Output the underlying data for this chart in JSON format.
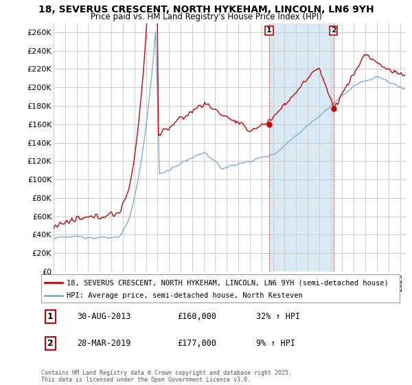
{
  "title": "18, SEVERUS CRESCENT, NORTH HYKEHAM, LINCOLN, LN6 9YH",
  "subtitle": "Price paid vs. HM Land Registry's House Price Index (HPI)",
  "ylabel_ticks": [
    "£0",
    "£20K",
    "£40K",
    "£60K",
    "£80K",
    "£100K",
    "£120K",
    "£140K",
    "£160K",
    "£180K",
    "£200K",
    "£220K",
    "£240K",
    "£260K"
  ],
  "ytick_values": [
    0,
    20000,
    40000,
    60000,
    80000,
    100000,
    120000,
    140000,
    160000,
    180000,
    200000,
    220000,
    240000,
    260000
  ],
  "legend_line1": "18, SEVERUS CRESCENT, NORTH HYKEHAM, LINCOLN, LN6 9YH (semi-detached house)",
  "legend_line2": "HPI: Average price, semi-detached house, North Kesteven",
  "annotation1_date": "30-AUG-2013",
  "annotation1_price": "£160,000",
  "annotation1_hpi": "32% ↑ HPI",
  "annotation2_date": "28-MAR-2019",
  "annotation2_price": "£177,000",
  "annotation2_hpi": "9% ↑ HPI",
  "footer": "Contains HM Land Registry data © Crown copyright and database right 2025.\nThis data is licensed under the Open Government Licence v3.0.",
  "red_line_color": "#cc0000",
  "blue_line_color": "#7ab0d4",
  "shaded_color": "#daeaf5",
  "vline_color": "#cc0000",
  "background_color": "#ffffff",
  "grid_color": "#cccccc",
  "x_start_year": 1995.0,
  "x_end_year": 2025.5,
  "ann1_year": 2013.667,
  "ann2_year": 2019.25
}
